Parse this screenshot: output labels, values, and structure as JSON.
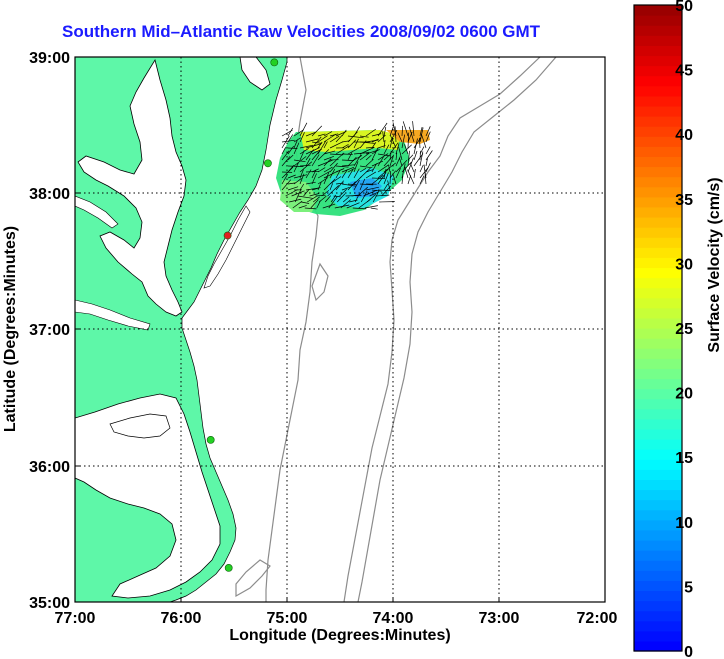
{
  "title": "Southern Mid–Atlantic Raw Velocities 2008/09/02 0600 GMT",
  "map": {
    "x_ticks": [
      "77:00",
      "76:00",
      "75:00",
      "74:00",
      "73:00",
      "72:00"
    ],
    "y_ticks": [
      "39:00",
      "38:00",
      "37:00",
      "36:00",
      "35:00"
    ],
    "xlabel": "Longitude (Degrees:Minutes)",
    "ylabel": "Latitude (Degrees:Minutes)",
    "lon_range": [
      -77,
      -72
    ],
    "lat_range": [
      35,
      39
    ],
    "colors": {
      "land": "#5ef7a8",
      "water": "#ffffff",
      "isobath": "#8c8c8c",
      "grid": "#000000"
    },
    "stations": [
      {
        "lon": -75.12,
        "lat": 38.96,
        "color": "#23d123"
      },
      {
        "lon": -75.18,
        "lat": 38.22,
        "color": "#23d123"
      },
      {
        "lon": -75.56,
        "lat": 37.69,
        "color": "#e02020"
      },
      {
        "lon": -75.72,
        "lat": 36.19,
        "color": "#23d123"
      },
      {
        "lon": -75.55,
        "lat": 35.25,
        "color": "#23d123"
      }
    ]
  },
  "colorbar": {
    "label": "Surface Velocity (cm/s)",
    "min": 0,
    "max": 50,
    "ticks": [
      "0",
      "5",
      "10",
      "15",
      "20",
      "25",
      "30",
      "35",
      "40",
      "45",
      "50"
    ]
  }
}
